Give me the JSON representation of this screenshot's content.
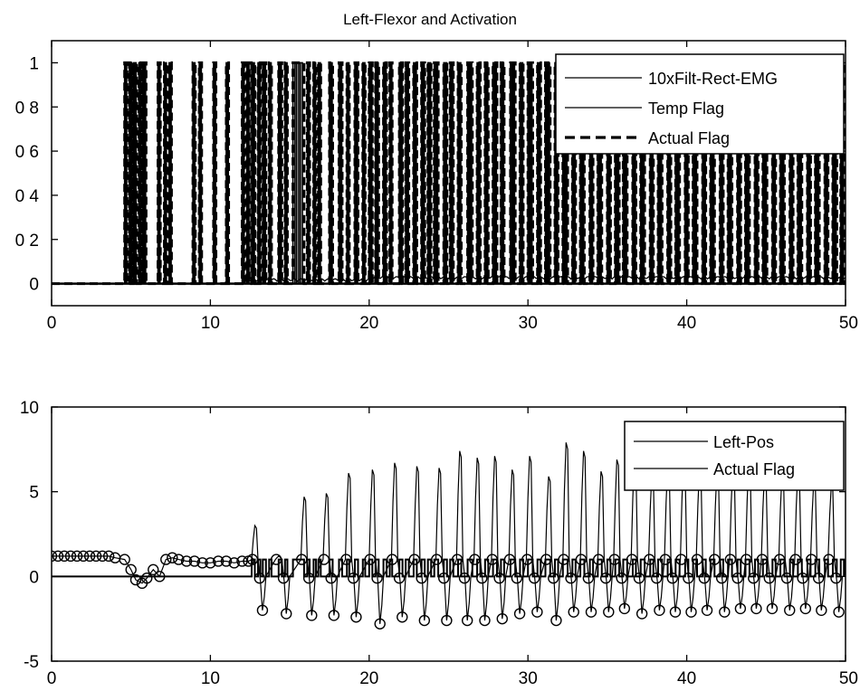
{
  "chart_data": [
    {
      "type": "line",
      "title": "Left-Flexor and Activation",
      "xlabel": "",
      "ylabel": "",
      "xlim": [
        0,
        50
      ],
      "ylim": [
        -0.1,
        1.1
      ],
      "x_ticks": [
        "0",
        "10",
        "20",
        "30",
        "40",
        "50"
      ],
      "y_ticks": [
        {
          "value": 1,
          "label": "1"
        },
        {
          "value": 0.8,
          "label": "0 8"
        },
        {
          "value": 0.6,
          "label": "0 6"
        },
        {
          "value": 0.4,
          "label": "0 4"
        },
        {
          "value": 0.2,
          "label": "0 2"
        },
        {
          "value": 0,
          "label": "0"
        }
      ],
      "legend_position": "top-right",
      "series": [
        {
          "name": "10xFilt-Rect-EMG",
          "style": "solid",
          "baseline": 0.0,
          "note_level_after_20": 0.02
        },
        {
          "name": "Temp Flag",
          "style": "solid",
          "on_value": 1,
          "off_value": 0
        },
        {
          "name": "Actual Flag",
          "style": "dashed",
          "on_value": 1,
          "off_value": 0
        }
      ],
      "activation_intervals": [
        [
          4.6,
          4.75
        ],
        [
          4.9,
          5.05
        ],
        [
          5.15,
          5.35
        ],
        [
          5.5,
          5.65
        ],
        [
          5.75,
          5.95
        ],
        [
          6.7,
          6.85
        ],
        [
          7.1,
          7.25
        ],
        [
          7.4,
          7.55
        ],
        [
          8.9,
          9.05
        ],
        [
          9.3,
          9.45
        ],
        [
          10.2,
          10.35
        ],
        [
          11.0,
          11.15
        ],
        [
          12.0,
          12.15
        ],
        [
          12.3,
          12.45
        ],
        [
          12.6,
          12.8
        ],
        [
          13.0,
          13.15
        ],
        [
          13.3,
          13.5
        ],
        [
          13.7,
          13.85
        ],
        [
          14.3,
          14.5
        ],
        [
          14.7,
          14.85
        ],
        [
          15.2,
          15.9
        ],
        [
          16.1,
          16.25
        ],
        [
          16.5,
          16.65
        ],
        [
          16.8,
          16.95
        ],
        [
          17.5,
          17.7
        ],
        [
          18.1,
          18.3
        ],
        [
          18.6,
          18.75
        ],
        [
          19.1,
          19.3
        ],
        [
          19.6,
          19.75
        ],
        [
          20.0,
          20.2
        ],
        [
          20.4,
          20.6
        ],
        [
          20.9,
          21.1
        ],
        [
          21.3,
          21.45
        ],
        [
          21.9,
          22.1
        ],
        [
          22.3,
          22.5
        ],
        [
          22.8,
          23.0
        ],
        [
          23.3,
          23.5
        ],
        [
          23.7,
          23.9
        ],
        [
          24.1,
          24.35
        ],
        [
          24.7,
          24.9
        ],
        [
          25.1,
          25.3
        ],
        [
          25.6,
          25.8
        ],
        [
          26.2,
          26.5
        ],
        [
          26.8,
          27.0
        ],
        [
          27.3,
          27.5
        ],
        [
          27.8,
          28.05
        ],
        [
          28.3,
          28.5
        ],
        [
          28.9,
          29.2
        ],
        [
          29.5,
          29.7
        ],
        [
          30.0,
          30.3
        ],
        [
          30.6,
          30.8
        ],
        [
          31.1,
          31.4
        ],
        [
          31.7,
          31.9
        ],
        [
          32.2,
          32.5
        ],
        [
          32.8,
          33.0
        ],
        [
          33.3,
          33.55
        ],
        [
          33.9,
          34.1
        ],
        [
          34.4,
          34.65
        ],
        [
          35.0,
          35.2
        ],
        [
          35.5,
          35.75
        ],
        [
          36.0,
          36.25
        ],
        [
          36.6,
          36.8
        ],
        [
          37.1,
          37.35
        ],
        [
          37.7,
          37.9
        ],
        [
          38.2,
          38.45
        ],
        [
          38.8,
          39.0
        ],
        [
          39.3,
          39.55
        ],
        [
          39.9,
          40.1
        ],
        [
          40.4,
          40.65
        ],
        [
          41.0,
          41.2
        ],
        [
          41.5,
          41.75
        ],
        [
          42.1,
          42.3
        ],
        [
          42.6,
          42.85
        ],
        [
          43.2,
          43.4
        ],
        [
          43.7,
          43.95
        ],
        [
          44.3,
          44.5
        ],
        [
          44.8,
          45.05
        ],
        [
          45.4,
          45.6
        ],
        [
          45.9,
          46.15
        ],
        [
          46.5,
          46.7
        ],
        [
          47.0,
          47.25
        ],
        [
          47.6,
          47.8
        ],
        [
          48.1,
          48.35
        ],
        [
          48.7,
          48.9
        ],
        [
          49.2,
          49.45
        ],
        [
          49.7,
          49.9
        ]
      ]
    },
    {
      "type": "line",
      "title": "",
      "xlabel": "",
      "ylabel": "",
      "xlim": [
        0,
        50
      ],
      "ylim": [
        -5,
        10
      ],
      "x_ticks": [
        "0",
        "10",
        "20",
        "30",
        "40",
        "50"
      ],
      "y_ticks": [
        {
          "value": 10,
          "label": "10"
        },
        {
          "value": 5,
          "label": "5"
        },
        {
          "value": 0,
          "label": "0"
        },
        {
          "value": -5,
          "label": "-5"
        }
      ],
      "legend_position": "top-right",
      "series": [
        {
          "name": "Left-Pos",
          "style": "solid-with-circle-markers"
        },
        {
          "name": "Actual Flag",
          "style": "solid",
          "on_value": 1,
          "off_value": 0
        }
      ],
      "early_position_points": [
        [
          0.0,
          1.2
        ],
        [
          0.4,
          1.2
        ],
        [
          0.8,
          1.2
        ],
        [
          1.2,
          1.2
        ],
        [
          1.6,
          1.2
        ],
        [
          2.0,
          1.2
        ],
        [
          2.4,
          1.2
        ],
        [
          2.8,
          1.2
        ],
        [
          3.2,
          1.2
        ],
        [
          3.6,
          1.2
        ],
        [
          4.0,
          1.1
        ],
        [
          4.6,
          1.0
        ],
        [
          5.0,
          0.4
        ],
        [
          5.3,
          -0.2
        ],
        [
          5.7,
          -0.4
        ],
        [
          6.0,
          -0.1
        ],
        [
          6.4,
          0.4
        ],
        [
          6.8,
          0.0
        ],
        [
          7.2,
          1.0
        ],
        [
          7.6,
          1.1
        ],
        [
          8.0,
          1.0
        ],
        [
          8.5,
          0.9
        ],
        [
          9.0,
          0.9
        ],
        [
          9.5,
          0.8
        ],
        [
          10.0,
          0.8
        ],
        [
          10.5,
          0.9
        ],
        [
          11.0,
          0.9
        ],
        [
          11.5,
          0.8
        ],
        [
          12.0,
          0.9
        ],
        [
          12.4,
          0.9
        ]
      ],
      "cycles": [
        {
          "start": 12.6,
          "peak": 3.0,
          "trough": -2.0
        },
        {
          "start": 14.1,
          "peak": 1.2,
          "trough": -2.2
        },
        {
          "start": 15.7,
          "peak": 4.7,
          "trough": -2.3
        },
        {
          "start": 17.1,
          "peak": 4.9,
          "trough": -2.3
        },
        {
          "start": 18.5,
          "peak": 6.1,
          "trough": -2.4
        },
        {
          "start": 20.0,
          "peak": 6.3,
          "trough": -2.8
        },
        {
          "start": 21.4,
          "peak": 6.7,
          "trough": -2.4
        },
        {
          "start": 22.8,
          "peak": 6.5,
          "trough": -2.6
        },
        {
          "start": 24.2,
          "peak": 6.4,
          "trough": -2.6
        },
        {
          "start": 25.5,
          "peak": 7.4,
          "trough": -2.6
        },
        {
          "start": 26.6,
          "peak": 7.0,
          "trough": -2.6
        },
        {
          "start": 27.7,
          "peak": 7.1,
          "trough": -2.5
        },
        {
          "start": 28.8,
          "peak": 6.3,
          "trough": -2.2
        },
        {
          "start": 29.9,
          "peak": 7.1,
          "trough": -2.1
        },
        {
          "start": 31.1,
          "peak": 5.9,
          "trough": -2.6
        },
        {
          "start": 32.2,
          "peak": 7.9,
          "trough": -2.1
        },
        {
          "start": 33.3,
          "peak": 7.4,
          "trough": -2.1
        },
        {
          "start": 34.4,
          "peak": 6.2,
          "trough": -2.1
        },
        {
          "start": 35.4,
          "peak": 6.9,
          "trough": -1.9
        },
        {
          "start": 36.5,
          "peak": 7.0,
          "trough": -2.2
        },
        {
          "start": 37.6,
          "peak": 6.0,
          "trough": -2.0
        },
        {
          "start": 38.6,
          "peak": 6.6,
          "trough": -2.1
        },
        {
          "start": 39.6,
          "peak": 6.9,
          "trough": -2.1
        },
        {
          "start": 40.6,
          "peak": 6.3,
          "trough": -2.0
        },
        {
          "start": 41.7,
          "peak": 6.2,
          "trough": -2.1
        },
        {
          "start": 42.7,
          "peak": 6.5,
          "trough": -1.9
        },
        {
          "start": 43.7,
          "peak": 6.7,
          "trough": -1.9
        },
        {
          "start": 44.7,
          "peak": 6.1,
          "trough": -1.9
        },
        {
          "start": 45.8,
          "peak": 6.0,
          "trough": -2.0
        },
        {
          "start": 46.8,
          "peak": 6.3,
          "trough": -1.9
        },
        {
          "start": 47.8,
          "peak": 5.6,
          "trough": -2.0
        },
        {
          "start": 48.9,
          "peak": 5.3,
          "trough": -2.1
        }
      ]
    }
  ]
}
